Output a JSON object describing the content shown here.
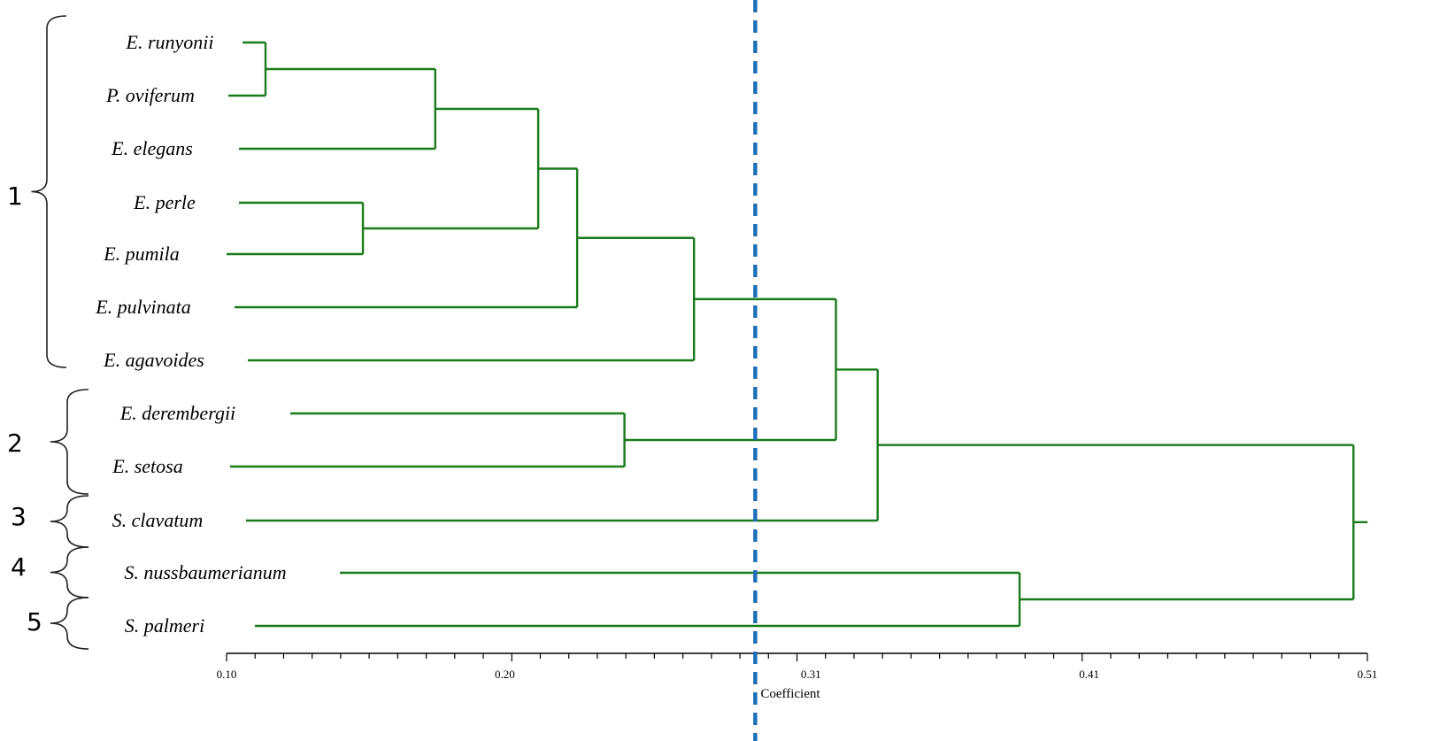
{
  "diagram": {
    "type": "dendrogram",
    "axis": {
      "title": "Coefficient",
      "ticks": [
        "0.10",
        "0.20",
        "0.31",
        "0.41",
        "0.51"
      ],
      "tick_values": [
        0.1,
        0.2,
        0.31,
        0.41,
        0.51
      ],
      "range": [
        0.1,
        0.51
      ]
    },
    "cutoff_value": 0.29,
    "taxa": [
      "E. runyonii",
      "P. oviferum",
      "E. elegans",
      "E. perle",
      "E. pumila",
      "E. pulvinata",
      "E. agavoides",
      "E. derembergii",
      "E. setosa",
      "S. clavatum",
      "S. nussbaumerianum",
      "S. palmeri"
    ],
    "merges": [
      {
        "id": "m1",
        "children": [
          "t0",
          "t1"
        ],
        "height": 0.114
      },
      {
        "id": "m2",
        "children": [
          "m1",
          "t2"
        ],
        "height": 0.175
      },
      {
        "id": "m3",
        "children": [
          "t3",
          "t4"
        ],
        "height": 0.149
      },
      {
        "id": "m4",
        "children": [
          "m2",
          "m3"
        ],
        "height": 0.212
      },
      {
        "id": "m5",
        "children": [
          "m4",
          "t5"
        ],
        "height": 0.226
      },
      {
        "id": "m6",
        "children": [
          "m5",
          "t6"
        ],
        "height": 0.268
      },
      {
        "id": "m7",
        "children": [
          "t7",
          "t8"
        ],
        "height": 0.243
      },
      {
        "id": "m8",
        "children": [
          "m6",
          "m7"
        ],
        "height": 0.319
      },
      {
        "id": "m9",
        "children": [
          "m8",
          "t9"
        ],
        "height": 0.334
      },
      {
        "id": "m10",
        "children": [
          "t10",
          "t11"
        ],
        "height": 0.385
      },
      {
        "id": "m11",
        "children": [
          "m9",
          "m10"
        ],
        "height": 0.505
      }
    ],
    "groups": [
      {
        "label": "1",
        "members": [
          "E. runyonii",
          "P. oviferum",
          "E. elegans",
          "E. perle",
          "E. pumila",
          "E. pulvinata",
          "E. agavoides"
        ]
      },
      {
        "label": "2",
        "members": [
          "E. derembergii",
          "E. setosa"
        ]
      },
      {
        "label": "3",
        "members": [
          "S. clavatum"
        ]
      },
      {
        "label": "4",
        "members": [
          "S. nussbaumerianum"
        ]
      },
      {
        "label": "5",
        "members": [
          "S. palmeri"
        ]
      }
    ],
    "colors": {
      "branch": "#1a7a1a",
      "cutoff": "#1f6fb8",
      "text": "#000000"
    }
  }
}
